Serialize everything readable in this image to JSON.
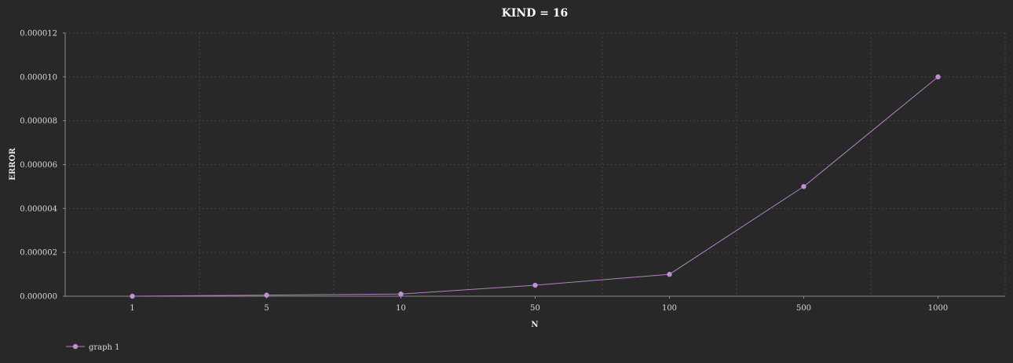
{
  "chart_data": {
    "type": "line",
    "title": "KIND = 16",
    "xlabel": "N",
    "ylabel": "ERROR",
    "categories": [
      "1",
      "5",
      "10",
      "50",
      "100",
      "500",
      "1000"
    ],
    "series": [
      {
        "name": "graph 1",
        "color": "#b07fc0",
        "values": [
          0.0,
          5e-08,
          1e-07,
          5e-07,
          1e-06,
          5e-06,
          1e-05
        ]
      }
    ],
    "yticks": [
      "0.000000",
      "0.000002",
      "0.000004",
      "0.000006",
      "0.000008",
      "0.000010",
      "0.000012"
    ],
    "ylim": [
      0,
      1.2e-05
    ],
    "grid": true,
    "legend_position": "bottom-left"
  }
}
